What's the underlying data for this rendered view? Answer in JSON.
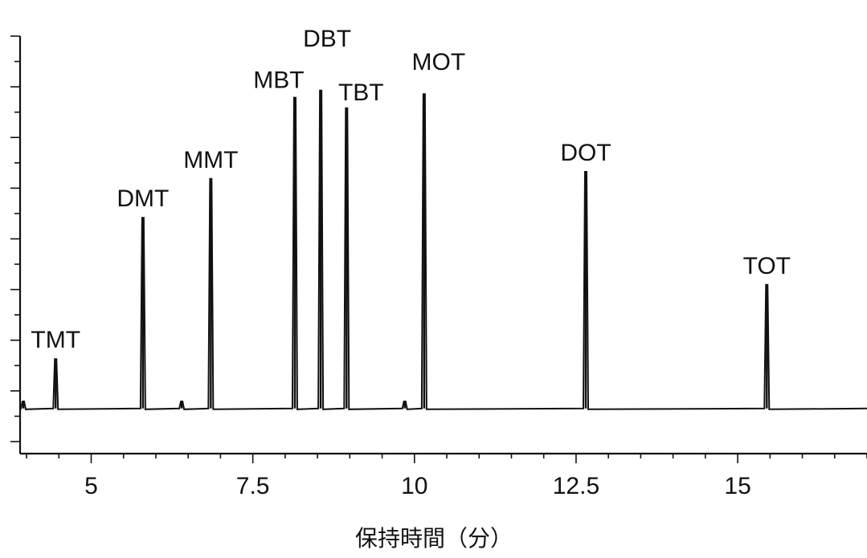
{
  "chart_data": {
    "type": "line",
    "xlabel": "保持時間（分）",
    "ylabel": "",
    "x_ticks": [
      5,
      7.5,
      10,
      12.5,
      15
    ],
    "x_tick_labels": [
      "5",
      "7.5",
      "10",
      "12.5",
      "15"
    ],
    "xlim": [
      3.9,
      17.0
    ],
    "ylim": [
      0,
      100
    ],
    "grid": false,
    "legend": "none",
    "baseline": 3,
    "series": [
      {
        "peaks": [
          {
            "x": 3.95,
            "height": 5,
            "label": ""
          },
          {
            "x": 4.45,
            "height": 17,
            "label": "TMT"
          },
          {
            "x": 5.8,
            "height": 57,
            "label": "DMT"
          },
          {
            "x": 6.4,
            "height": 5,
            "label": ""
          },
          {
            "x": 6.85,
            "height": 68,
            "label": "MMT"
          },
          {
            "x": 8.15,
            "height": 91,
            "label": "MBT"
          },
          {
            "x": 8.55,
            "height": 93,
            "label": "DBT"
          },
          {
            "x": 8.95,
            "height": 88,
            "label": "TBT"
          },
          {
            "x": 9.85,
            "height": 5,
            "label": ""
          },
          {
            "x": 10.15,
            "height": 92,
            "label": "MOT"
          },
          {
            "x": 12.65,
            "height": 70,
            "label": "DOT"
          },
          {
            "x": 15.45,
            "height": 38,
            "label": "TOT"
          }
        ]
      }
    ]
  }
}
